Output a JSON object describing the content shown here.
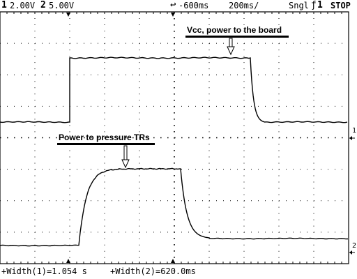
{
  "status": {
    "ch1_number": "1",
    "ch1_scale": "2.00V",
    "ch2_number": "2",
    "ch2_scale": "5.00V",
    "trigger_delay": "-600ms",
    "timebase": "200ms/",
    "mode": "Sngl",
    "trigger_source": "1",
    "run_state": "STOP"
  },
  "annotations": {
    "vcc": "Vcc, power to the board",
    "pressure": "Power to pressure TRs"
  },
  "ground_markers": {
    "ch1": "1",
    "ch2": "2"
  },
  "measurements": {
    "width1": "+Width(1)=1.054 s",
    "width2": "+Width(2)=620.0ms"
  },
  "colors": {
    "background": "#ffffff",
    "grid": "#000000",
    "trace": "#000000"
  }
}
